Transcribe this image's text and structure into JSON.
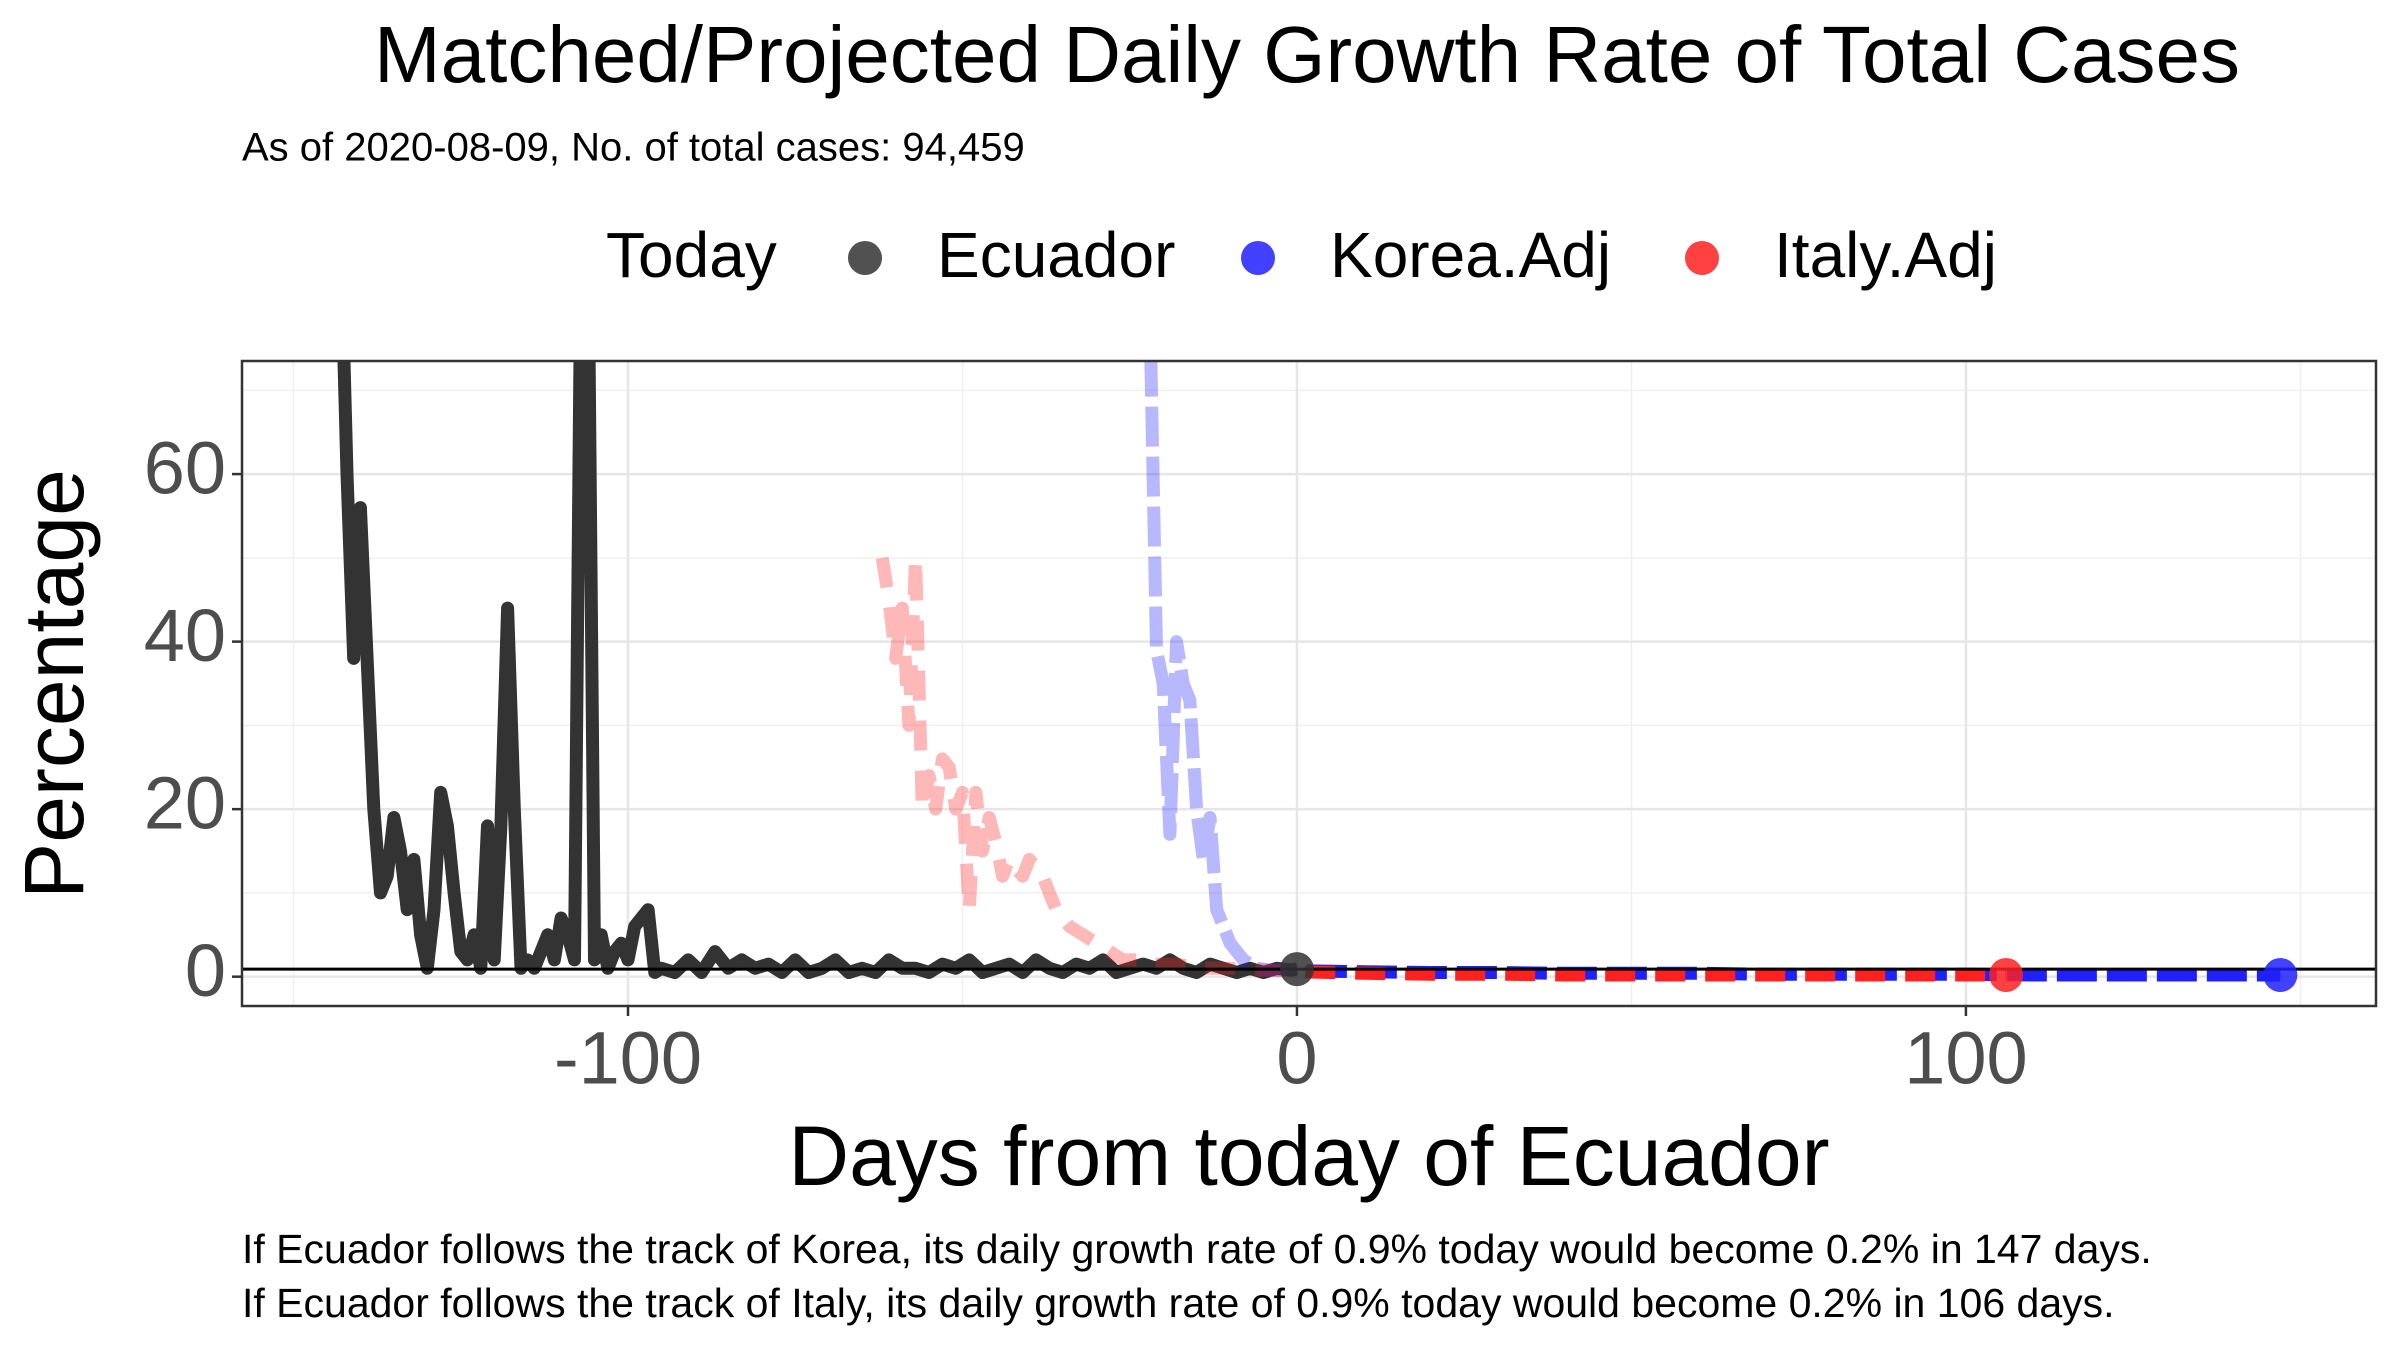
{
  "chart_data": {
    "type": "line",
    "title": "Matched/Projected Daily Growth Rate of Total Cases",
    "subtitle": "As of 2020-08-09, No. of total cases: 94,459",
    "x_label": "Days from today of Ecuador",
    "y_label": "Percentage",
    "legend_title": "Today",
    "xlim": [
      -157.7,
      161.3
    ],
    "ylim": [
      -3.5,
      73.5
    ],
    "xticks": [
      -100,
      0,
      100
    ],
    "yticks": [
      0,
      20,
      40,
      60
    ],
    "grid": true,
    "reference_line": 0.9,
    "series": [
      {
        "name": "Ecuador",
        "color": "#333333",
        "x": [
          -143,
          -142,
          -141,
          -140,
          -139,
          -138,
          -137,
          -136,
          -135,
          -134,
          -133,
          -132,
          -131,
          -130,
          -129,
          -128,
          -127,
          -126,
          -125,
          -124,
          -123,
          -122,
          -121,
          -120,
          -119,
          -118,
          -117,
          -116,
          -115,
          -114,
          -113,
          -112,
          -111,
          -110,
          -109,
          -108,
          -107,
          -106,
          -105,
          -104,
          -103,
          -102,
          -101,
          -100,
          -99,
          -98,
          -97,
          -96,
          -95,
          -93,
          -91,
          -89,
          -87,
          -85,
          -83,
          -81,
          -79,
          -77,
          -75,
          -73,
          -71,
          -69,
          -67,
          -65,
          -63,
          -61,
          -59,
          -57,
          -55,
          -53,
          -51,
          -49,
          -47,
          -45,
          -43,
          -41,
          -39,
          -37,
          -35,
          -33,
          -31,
          -29,
          -27,
          -25,
          -23,
          -21,
          -19,
          -17,
          -15,
          -13,
          -11,
          -9,
          -7,
          -5,
          -3,
          -1,
          0
        ],
        "values": [
          90,
          60,
          38,
          56,
          38,
          20,
          10,
          12,
          19,
          15,
          8,
          14,
          5,
          1,
          8,
          22,
          18,
          10,
          3,
          2,
          5,
          1,
          18,
          2,
          18,
          44,
          20,
          1,
          2,
          1,
          3,
          5,
          2,
          7,
          5,
          2,
          90,
          90,
          2,
          5,
          1,
          3,
          4,
          2,
          6,
          7,
          8,
          0.5,
          1,
          0.5,
          2,
          0.5,
          3,
          1,
          2,
          1,
          1.5,
          0.5,
          2,
          0.5,
          1,
          2,
          0.5,
          1,
          0.5,
          2,
          1,
          1,
          0.5,
          1.5,
          1,
          2,
          0.5,
          1,
          1.5,
          0.5,
          2,
          1,
          0.5,
          1.5,
          1,
          2,
          0.5,
          1,
          1.5,
          1,
          2,
          1,
          0.5,
          1.5,
          1,
          0.5,
          1,
          0.5,
          1,
          0.8,
          0.9
        ]
      },
      {
        "name": "Korea.Adj",
        "color": "#2020ff",
        "x": [
          -22,
          -21,
          -20,
          -19,
          -18,
          -17,
          -16,
          -15,
          -14,
          -13,
          -12,
          -11,
          -10,
          -9,
          -8,
          -7,
          -6,
          -4,
          -2,
          0,
          10,
          20,
          30,
          40,
          50,
          60,
          70,
          80,
          90,
          100,
          110,
          120,
          130,
          140,
          147
        ],
        "values": [
          80,
          39,
          35,
          17,
          40,
          35,
          33,
          20,
          14,
          19,
          8,
          6,
          4,
          3,
          2,
          1.5,
          1,
          0.8,
          0.8,
          0.7,
          0.6,
          0.5,
          0.5,
          0.4,
          0.4,
          0.4,
          0.3,
          0.3,
          0.3,
          0.3,
          0.2,
          0.2,
          0.2,
          0.2,
          0.2
        ]
      },
      {
        "name": "Italy.Adj",
        "color": "#ff2020",
        "x": [
          -62,
          -61,
          -60,
          -59,
          -58,
          -57,
          -56,
          -55,
          -54,
          -53,
          -52,
          -51,
          -50,
          -49,
          -48,
          -47,
          -46,
          -45,
          -44,
          -43,
          -42,
          -41,
          -40,
          -38,
          -36,
          -34,
          -32,
          -30,
          -28,
          -26,
          -24,
          -22,
          -18,
          -14,
          -10,
          -6,
          -2,
          0,
          10,
          20,
          30,
          40,
          50,
          60,
          70,
          80,
          90,
          100,
          106
        ],
        "values": [
          50,
          45,
          38,
          44,
          30,
          50,
          20,
          24,
          20,
          26,
          25,
          20,
          22,
          8,
          22,
          15,
          19,
          16,
          12,
          14,
          13,
          12,
          14,
          12,
          8,
          6,
          5,
          4,
          3,
          2,
          2,
          1.5,
          1.5,
          1,
          1,
          0.8,
          0.7,
          0.6,
          0.4,
          0.3,
          0.3,
          0.2,
          0.2,
          0.2,
          0.2,
          0.2,
          0.2,
          0.2,
          0.2
        ]
      }
    ],
    "today_points": [
      {
        "x": 0,
        "value": 0.9,
        "color": "#333333"
      },
      {
        "x": 147,
        "value": 0.2,
        "color": "#2020ff"
      },
      {
        "x": 106,
        "value": 0.2,
        "color": "#ff2020"
      }
    ],
    "notes": [
      "If Ecuador follows the track of Korea, its daily growth rate of 0.9% today would become 0.2% in 147 days.",
      "If Ecuador follows the track of Italy, its daily growth rate of 0.9% today would become 0.2% in 106 days."
    ]
  }
}
